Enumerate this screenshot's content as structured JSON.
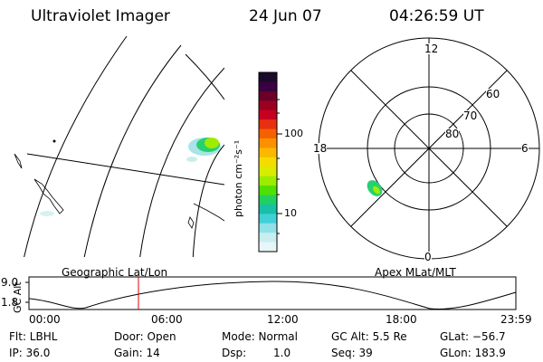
{
  "header": {
    "instrument": "Ultraviolet Imager",
    "date": "24 Jun 07",
    "time": "04:26:59 UT"
  },
  "colorbar": {
    "unit_label": "photon cm⁻²s⁻¹",
    "ticks": [
      "100",
      "10"
    ],
    "colors": [
      "#1a0a2a",
      "#3a0040",
      "#6a0028",
      "#9a0020",
      "#c80020",
      "#e83010",
      "#f56000",
      "#fc9000",
      "#fcb800",
      "#f5dc00",
      "#d8ec00",
      "#9cec00",
      "#50e000",
      "#20d060",
      "#18c0a8",
      "#40d0d8",
      "#90e0e8",
      "#c8eef0",
      "#e8f6f8"
    ]
  },
  "geo_panel": {
    "label": "Geographic Lat/Lon"
  },
  "polar_panel": {
    "label": "Apex MLat/MLT",
    "mlt_labels": {
      "top": "12",
      "left": "18",
      "right": "6",
      "bottom": "0"
    },
    "lat_labels": [
      "60",
      "70",
      "80"
    ]
  },
  "altitude_plot": {
    "ylabel": "GC Alt",
    "yticks": [
      "9.0",
      "1.8"
    ],
    "xticks": [
      "00:00",
      "06:00",
      "12:00",
      "18:00",
      "23:59"
    ],
    "marker_time": "04:26:59"
  },
  "info": {
    "flt": "Flt: LBHL",
    "ip": "IP: 36.0",
    "door": "Door: Open",
    "gain": "Gain: 14",
    "mode": "Mode: Normal",
    "dsp_label": "Dsp:",
    "dsp_value": "1.0",
    "gc_alt": "GC Alt: 5.5 Re",
    "seq": "Seq: 39",
    "glat": "GLat: −56.7",
    "glon": "GLon: 183.9"
  }
}
